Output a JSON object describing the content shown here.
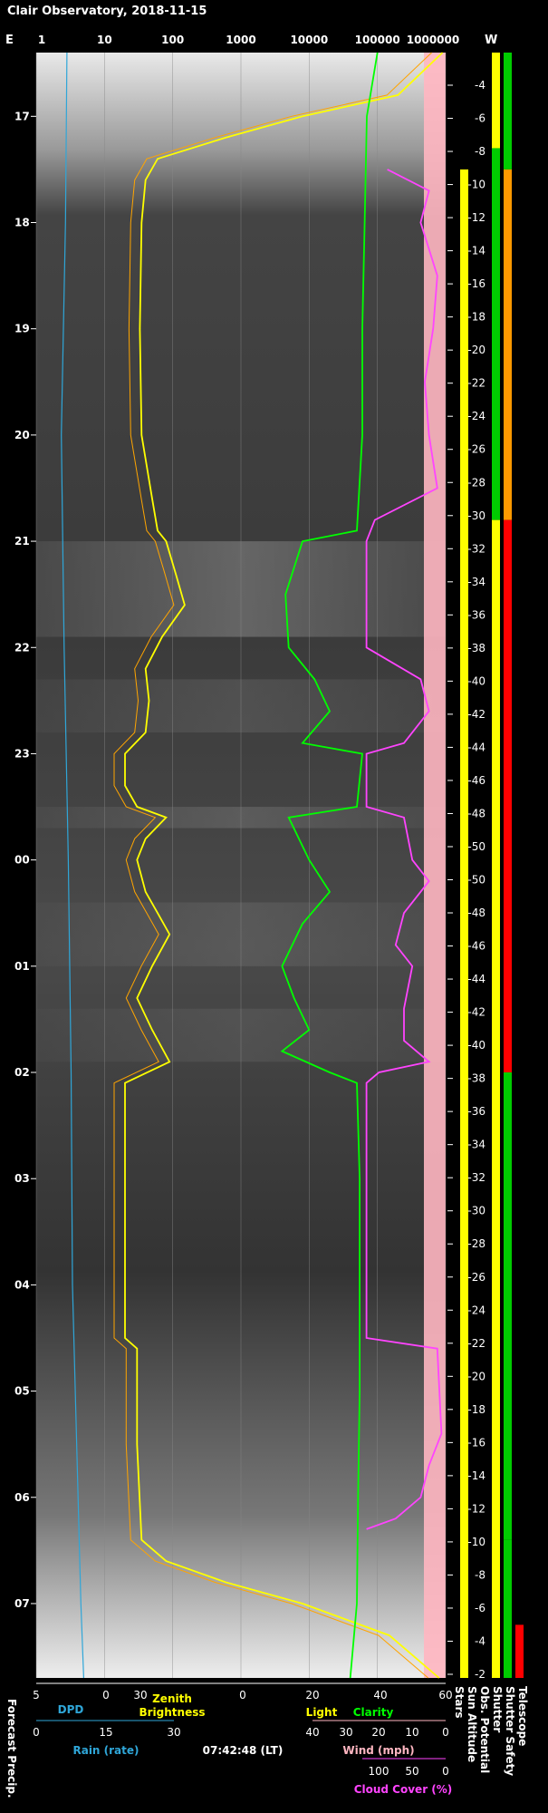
{
  "title": "Clair Observatory, 2018-11-15",
  "timestamp": "07:42:48 (LT)",
  "direction": {
    "east": "E",
    "west": "W"
  },
  "colors": {
    "background": "#000000",
    "dpd": "#2fa6d8",
    "rain": "#2fa6d8",
    "zenith": "#ffff00",
    "light": "#ffff00",
    "clarity": "#00ff00",
    "wind": "#ffb6c1",
    "cloud": "#ff44ff",
    "sun_altitude": "#ffff00",
    "orange": "#ffa500",
    "status_green": "#00cc00",
    "status_red": "#ff0000",
    "status_yellow": "#ffff00",
    "status_orange": "#ff9900",
    "grid": "#888888"
  },
  "chart_data": {
    "type": "line",
    "time_axis": {
      "labels": [
        "17",
        "18",
        "19",
        "20",
        "21",
        "22",
        "23",
        "00",
        "01",
        "02",
        "03",
        "04",
        "05",
        "06",
        "07"
      ],
      "start_hour": 16.4,
      "end_hour": 31.7
    },
    "top_axis": {
      "labels": [
        "1",
        "10",
        "100",
        "1000",
        "10000",
        "100000",
        "1000000"
      ],
      "values": [
        1,
        10,
        100,
        1000,
        10000,
        100000,
        1000000
      ],
      "scale": "log"
    },
    "series": [
      {
        "name": "Zenith Brightness",
        "key": "zenith",
        "x_scale": "log",
        "points": [
          [
            16.4,
            900000
          ],
          [
            16.8,
            200000
          ],
          [
            17.0,
            8000
          ],
          [
            17.2,
            600
          ],
          [
            17.4,
            60
          ],
          [
            17.6,
            40
          ],
          [
            18.0,
            35
          ],
          [
            19.0,
            33
          ],
          [
            20.0,
            35
          ],
          [
            20.6,
            50
          ],
          [
            20.9,
            60
          ],
          [
            21.0,
            80
          ],
          [
            21.3,
            110
          ],
          [
            21.6,
            150
          ],
          [
            21.9,
            70
          ],
          [
            22.2,
            40
          ],
          [
            22.5,
            45
          ],
          [
            22.8,
            40
          ],
          [
            23.0,
            20
          ],
          [
            23.3,
            20
          ],
          [
            23.5,
            30
          ],
          [
            23.6,
            80
          ],
          [
            23.8,
            40
          ],
          [
            24.0,
            30
          ],
          [
            24.3,
            40
          ],
          [
            24.5,
            60
          ],
          [
            24.7,
            90
          ],
          [
            25.0,
            50
          ],
          [
            25.3,
            30
          ],
          [
            25.6,
            50
          ],
          [
            25.9,
            90
          ],
          [
            26.1,
            20
          ],
          [
            27.0,
            20
          ],
          [
            28.0,
            20
          ],
          [
            28.5,
            20
          ],
          [
            28.6,
            30
          ],
          [
            29.5,
            30
          ],
          [
            30.4,
            35
          ],
          [
            30.6,
            80
          ],
          [
            30.8,
            600
          ],
          [
            31.0,
            8000
          ],
          [
            31.3,
            150000
          ],
          [
            31.7,
            800000
          ]
        ]
      },
      {
        "name": "Clarity",
        "key": "clarity",
        "x_scale": "log",
        "points": [
          [
            16.4,
            100000
          ],
          [
            17.0,
            70000
          ],
          [
            18.0,
            65000
          ],
          [
            19.0,
            60000
          ],
          [
            20.0,
            60000
          ],
          [
            20.9,
            50000
          ],
          [
            21.0,
            8000
          ],
          [
            21.5,
            4500
          ],
          [
            22.0,
            5000
          ],
          [
            22.3,
            12000
          ],
          [
            22.6,
            20000
          ],
          [
            22.9,
            8000
          ],
          [
            23.0,
            60000
          ],
          [
            23.5,
            50000
          ],
          [
            23.6,
            5000
          ],
          [
            24.0,
            10000
          ],
          [
            24.3,
            20000
          ],
          [
            24.6,
            8000
          ],
          [
            25.0,
            4000
          ],
          [
            25.3,
            6000
          ],
          [
            25.6,
            10000
          ],
          [
            25.8,
            4000
          ],
          [
            26.0,
            20000
          ],
          [
            26.1,
            50000
          ],
          [
            27.0,
            55000
          ],
          [
            28.0,
            55000
          ],
          [
            29.0,
            55000
          ],
          [
            30.0,
            52000
          ],
          [
            31.0,
            50000
          ],
          [
            31.7,
            40000
          ]
        ]
      },
      {
        "name": "Cloud Cover (%)",
        "key": "cloud",
        "x_scale": "cloud",
        "points": [
          [
            17.5,
            70
          ],
          [
            17.7,
            20
          ],
          [
            18.0,
            30
          ],
          [
            18.5,
            10
          ],
          [
            19.0,
            15
          ],
          [
            19.5,
            25
          ],
          [
            20.0,
            20
          ],
          [
            20.5,
            10
          ],
          [
            20.8,
            85
          ],
          [
            21.0,
            95
          ],
          [
            21.5,
            95
          ],
          [
            22.0,
            95
          ],
          [
            22.3,
            30
          ],
          [
            22.6,
            20
          ],
          [
            22.9,
            50
          ],
          [
            23.0,
            95
          ],
          [
            23.5,
            95
          ],
          [
            23.6,
            50
          ],
          [
            24.0,
            40
          ],
          [
            24.2,
            20
          ],
          [
            24.5,
            50
          ],
          [
            24.8,
            60
          ],
          [
            25.0,
            40
          ],
          [
            25.4,
            50
          ],
          [
            25.7,
            50
          ],
          [
            25.9,
            20
          ],
          [
            26.0,
            80
          ],
          [
            26.1,
            95
          ],
          [
            28.5,
            95
          ],
          [
            28.6,
            10
          ],
          [
            29.4,
            5
          ],
          [
            29.7,
            20
          ],
          [
            30.0,
            30
          ],
          [
            30.2,
            60
          ],
          [
            30.3,
            95
          ]
        ]
      },
      {
        "name": "DPD",
        "key": "dpd",
        "x_scale": "dpd",
        "points": [
          [
            16.4,
            2.8
          ],
          [
            18.0,
            2.9
          ],
          [
            20.0,
            3.2
          ],
          [
            22.0,
            3.0
          ],
          [
            24.0,
            2.7
          ],
          [
            26.0,
            2.5
          ],
          [
            28.0,
            2.4
          ],
          [
            30.0,
            2.0
          ],
          [
            31.0,
            1.8
          ],
          [
            31.7,
            1.6
          ]
        ]
      },
      {
        "name": "Sun Altitude",
        "key": "sun_altitude",
        "labels": [
          "-4",
          "-6",
          "-8",
          "-10",
          "-12",
          "-14",
          "-16",
          "-18",
          "-20",
          "-22",
          "-24",
          "-26",
          "-28",
          "-30",
          "-32",
          "-34",
          "-36",
          "-38",
          "-40",
          "-42",
          "-44",
          "-46",
          "-48",
          "-50",
          "-50",
          "-48",
          "-46",
          "-44",
          "-42",
          "-40",
          "-38",
          "-36",
          "-34",
          "-32",
          "-30",
          "-28",
          "-26",
          "-24",
          "-22",
          "-20",
          "-18",
          "-16",
          "-14",
          "-12",
          "-10",
          "-8",
          "-6",
          "-4",
          "-2"
        ]
      }
    ],
    "status_columns": [
      {
        "name": "Sun Altitude",
        "key": "sunalt",
        "segments": [
          [
            16.4,
            17.5,
            "black"
          ],
          [
            17.5,
            31.7,
            "yellow"
          ]
        ]
      },
      {
        "name": "Obs. Potential",
        "key": "obs",
        "segments": [
          [
            16.4,
            17.3,
            "yellow"
          ],
          [
            17.3,
            20.8,
            "green"
          ],
          [
            20.8,
            31.7,
            "yellow"
          ]
        ]
      },
      {
        "name": "Shutter Safety",
        "key": "safety",
        "segments": [
          [
            16.4,
            17.5,
            "green"
          ],
          [
            17.5,
            20.8,
            "orange"
          ],
          [
            20.8,
            26.0,
            "red"
          ],
          [
            26.0,
            30.4,
            "green"
          ],
          [
            30.4,
            31.7,
            "green"
          ]
        ]
      },
      {
        "name": "Telescope Shutter",
        "key": "telescope",
        "segments": [
          [
            16.4,
            31.2,
            "black"
          ],
          [
            31.2,
            31.7,
            "red"
          ]
        ]
      }
    ],
    "bottom_axes": [
      {
        "name": "DPD",
        "labels": [
          "5",
          "0"
        ],
        "color": "dpd"
      },
      {
        "name": "Zenith Brightness",
        "labels": [
          "30",
          "0"
        ],
        "color": "zenith"
      },
      {
        "name": "Light",
        "labels": [
          "20",
          "40",
          "60"
        ],
        "color": "light"
      },
      {
        "name": "Clarity",
        "labels": [
          "20",
          "40",
          "60"
        ],
        "color": "clarity"
      },
      {
        "name": "Rain (rate)",
        "labels": [
          "0",
          "15",
          "30"
        ],
        "color": "rain"
      },
      {
        "name": "Wind (mph)",
        "labels": [
          "40",
          "30",
          "20",
          "10",
          "0"
        ],
        "color": "wind"
      },
      {
        "name": "Cloud Cover (%)",
        "labels": [
          "100",
          "50",
          "0"
        ],
        "color": "cloud"
      }
    ],
    "left_labels": [
      "Forecast Precip."
    ]
  }
}
